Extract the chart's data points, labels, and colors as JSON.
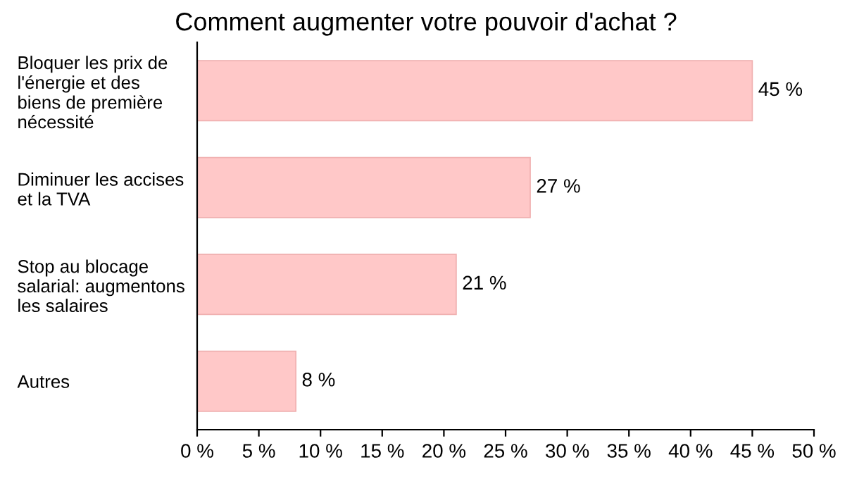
{
  "chart_data": {
    "type": "bar",
    "orientation": "horizontal",
    "title": "Comment augmenter votre pouvoir d'achat ?",
    "categories": [
      "Bloquer les prix de\nl'énergie et des\nbiens de première\nnécessité",
      "Diminuer les accises\net la TVA",
      "Stop au blocage\nsalarial: augmentons\nles salaires",
      "Autres"
    ],
    "values": [
      45,
      27,
      21,
      8
    ],
    "value_labels": [
      "45 %",
      "27 %",
      "21 %",
      "8 %"
    ],
    "color": "#ffc8c8",
    "xlim": [
      0,
      50
    ],
    "xticks": [
      {
        "value": 0,
        "label": "0 %"
      },
      {
        "value": 5,
        "label": "5 %"
      },
      {
        "value": 10,
        "label": "10 %"
      },
      {
        "value": 15,
        "label": "15 %"
      },
      {
        "value": 20,
        "label": "20 %"
      },
      {
        "value": 25,
        "label": "25 %"
      },
      {
        "value": 30,
        "label": "30 %"
      },
      {
        "value": 35,
        "label": "35 %"
      },
      {
        "value": 40,
        "label": "40 %"
      },
      {
        "value": 45,
        "label": "45 %"
      },
      {
        "value": 50,
        "label": "50 %"
      }
    ],
    "grid": false
  }
}
